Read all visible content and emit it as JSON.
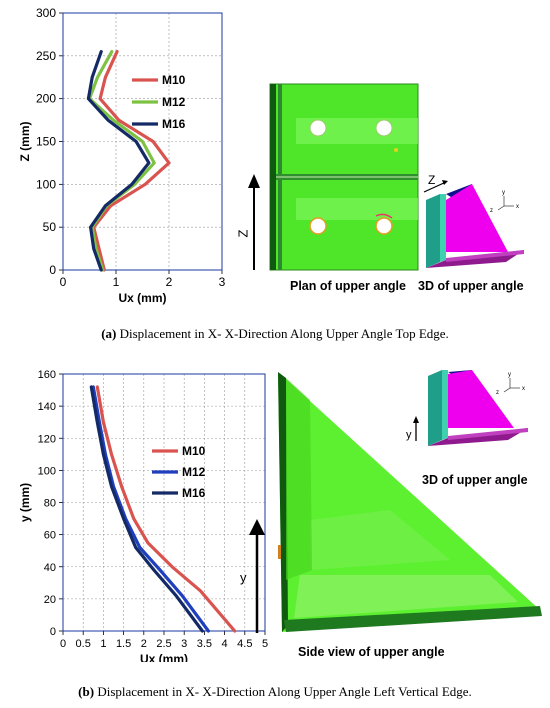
{
  "colors": {
    "M10": "#d9534f",
    "M12": "#7dc242",
    "M12b": "#1f3fbf",
    "M16": "#142a66",
    "fea_green": "#62f03a",
    "fea_dark": "#0f5a0f",
    "magenta": "#ee00ee",
    "teal": "#20a889"
  },
  "figure_a": {
    "caption_prefix": "(a)",
    "caption_text": "Displacement in X- X-Direction Along Upper Angle Top Edge.",
    "label_plan": "Plan of upper angle",
    "label_3d": "3D of upper angle",
    "arrow_label": "Z",
    "axis_glyph": "Z",
    "tri_axis_y": "y",
    "tri_axis_z": "z",
    "tri_axis_x": "x"
  },
  "figure_b": {
    "caption_prefix": "(b)",
    "caption_text": "Displacement in X- X-Direction Along Upper Angle Left Vertical Edge.",
    "label_side": "Side view of upper angle",
    "label_3d": "3D of upper angle",
    "arrow_label": "y",
    "inset_axis": "y",
    "tri_axis_y": "y",
    "tri_axis_z": "z",
    "tri_axis_x": "x"
  },
  "chart_data": [
    {
      "type": "line",
      "xlabel": "Ux (mm)",
      "ylabel": "Z (mm)",
      "xlim": [
        0,
        3
      ],
      "ylim": [
        0,
        300
      ],
      "xticks": [
        "0",
        "1",
        "2",
        "3"
      ],
      "yticks": [
        "0",
        "50",
        "100",
        "150",
        "200",
        "250",
        "300"
      ],
      "grid": true,
      "legend_position": "right",
      "series": [
        {
          "name": "M10",
          "color": "#d9534f",
          "points": [
            [
              0.78,
              0
            ],
            [
              0.68,
              25
            ],
            [
              0.58,
              50
            ],
            [
              0.9,
              75
            ],
            [
              1.55,
              100
            ],
            [
              2.0,
              125
            ],
            [
              1.7,
              150
            ],
            [
              1.05,
              175
            ],
            [
              0.7,
              200
            ],
            [
              0.8,
              225
            ],
            [
              1.02,
              255
            ]
          ]
        },
        {
          "name": "M12",
          "color": "#7dc242",
          "points": [
            [
              0.75,
              0
            ],
            [
              0.62,
              25
            ],
            [
              0.55,
              50
            ],
            [
              0.82,
              75
            ],
            [
              1.35,
              100
            ],
            [
              1.72,
              125
            ],
            [
              1.5,
              150
            ],
            [
              0.95,
              175
            ],
            [
              0.5,
              200
            ],
            [
              0.65,
              225
            ],
            [
              0.92,
              255
            ]
          ]
        },
        {
          "name": "M16",
          "color": "#142a66",
          "points": [
            [
              0.72,
              0
            ],
            [
              0.58,
              25
            ],
            [
              0.52,
              50
            ],
            [
              0.8,
              75
            ],
            [
              1.3,
              100
            ],
            [
              1.62,
              125
            ],
            [
              1.38,
              150
            ],
            [
              0.85,
              175
            ],
            [
              0.48,
              200
            ],
            [
              0.55,
              225
            ],
            [
              0.72,
              255
            ]
          ]
        }
      ]
    },
    {
      "type": "line",
      "xlabel": "Ux (mm)",
      "ylabel": "y (mm)",
      "xlim": [
        0,
        5
      ],
      "ylim": [
        0,
        160
      ],
      "xticks": [
        "0",
        "0.5",
        "1",
        "1.5",
        "2",
        "2.5",
        "3",
        "3.5",
        "4",
        "4.5",
        "5"
      ],
      "yticks": [
        "0",
        "20",
        "40",
        "60",
        "80",
        "100",
        "120",
        "140",
        "160"
      ],
      "grid": true,
      "legend_position": "right",
      "series": [
        {
          "name": "M10",
          "color": "#d9534f",
          "points": [
            [
              0.85,
              152
            ],
            [
              1.0,
              130
            ],
            [
              1.2,
              110
            ],
            [
              1.45,
              90
            ],
            [
              1.75,
              70
            ],
            [
              2.1,
              55
            ],
            [
              2.7,
              40
            ],
            [
              3.4,
              25
            ],
            [
              4.25,
              0
            ]
          ]
        },
        {
          "name": "M12",
          "color": "#1f3fbf",
          "points": [
            [
              0.75,
              152
            ],
            [
              0.9,
              130
            ],
            [
              1.05,
              110
            ],
            [
              1.25,
              90
            ],
            [
              1.55,
              70
            ],
            [
              1.9,
              52
            ],
            [
              2.4,
              38
            ],
            [
              2.95,
              22
            ],
            [
              3.6,
              0
            ]
          ]
        },
        {
          "name": "M16",
          "color": "#142a66",
          "points": [
            [
              0.7,
              152
            ],
            [
              0.85,
              130
            ],
            [
              1.0,
              110
            ],
            [
              1.2,
              90
            ],
            [
              1.5,
              70
            ],
            [
              1.8,
              52
            ],
            [
              2.25,
              38
            ],
            [
              2.8,
              22
            ],
            [
              3.45,
              0
            ]
          ]
        }
      ]
    }
  ]
}
